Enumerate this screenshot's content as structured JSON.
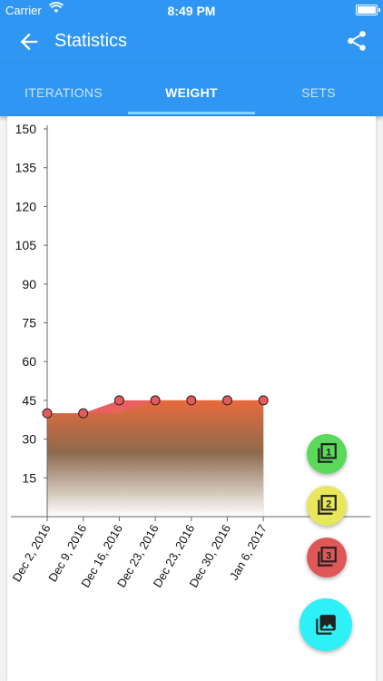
{
  "status_bar": {
    "carrier": "Carrier",
    "time": "8:49 PM"
  },
  "app_bar": {
    "title": "Statistics",
    "back_icon": "arrow-back-icon",
    "share_icon": "share-icon"
  },
  "tabs": [
    {
      "label": "ITERATIONS",
      "active": false
    },
    {
      "label": "WEIGHT",
      "active": true
    },
    {
      "label": "SETS",
      "active": false
    }
  ],
  "colors": {
    "primary": "#2f96f3",
    "indicator": "#80d8ff",
    "fab1": "#5ad95a",
    "fab2": "#e8e65a",
    "fab3": "#e05757",
    "fab_main": "#2ef0f7"
  },
  "fabs": [
    {
      "icon": "filter-1-icon",
      "number": "1",
      "color": "#5ad95a"
    },
    {
      "icon": "filter-2-icon",
      "number": "2",
      "color": "#e8e65a"
    },
    {
      "icon": "filter-3-icon",
      "number": "3",
      "color": "#e05757"
    },
    {
      "icon": "photo-library-icon",
      "color": "#2ef0f7"
    }
  ],
  "chart_data": {
    "type": "area",
    "categories": [
      "Dec 2, 2016",
      "Dec 9, 2016",
      "Dec 16, 2016",
      "Dec 23, 2016",
      "Dec 23, 2016",
      "Dec 30, 2016",
      "Jan 6, 2017"
    ],
    "series": [
      {
        "values": [
          40,
          40,
          45,
          45,
          45,
          45,
          45
        ]
      },
      {
        "values": [
          40,
          40,
          40,
          45,
          45,
          45,
          45
        ]
      }
    ],
    "y_ticks": [
      15,
      30,
      45,
      60,
      75,
      90,
      105,
      120,
      135,
      150
    ],
    "ylim": [
      0,
      150
    ],
    "grid": false
  }
}
